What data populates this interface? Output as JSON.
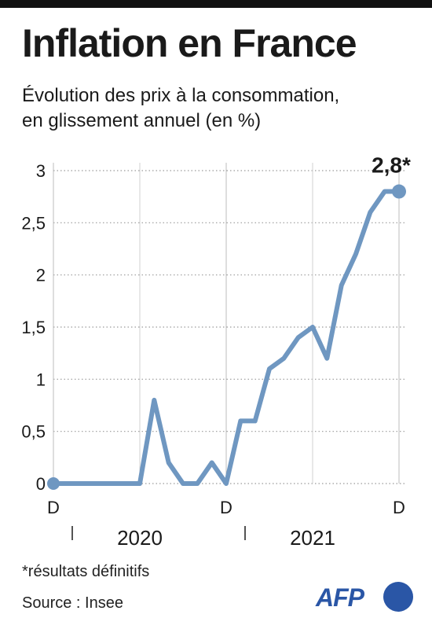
{
  "header": {
    "title": "Inflation en France",
    "subtitle_line1": "Évolution des prix à la consommation,",
    "subtitle_line2": "en glissement annuel (en %)"
  },
  "footer": {
    "footnote": "*résultats définitifs",
    "source": "Source : Insee",
    "logo": "AFP"
  },
  "colors": {
    "line": "#6f97c1",
    "grid": "#9a9a9a",
    "text": "#1a1a1a",
    "brand": "#2a56a6"
  },
  "chart_data": {
    "type": "line",
    "title": "Inflation en France",
    "subtitle": "Évolution des prix à la consommation, en glissement annuel (en %)",
    "xlabel": "",
    "ylabel": "",
    "ylim": [
      0,
      3
    ],
    "yticks": [
      0,
      0.5,
      1,
      1.5,
      2,
      2.5,
      3
    ],
    "ytick_labels": [
      "0",
      "0,5",
      "1",
      "1,5",
      "2",
      "2,5",
      "3"
    ],
    "x_tick_labels": [
      "D",
      "D",
      "D"
    ],
    "x_tick_positions": [
      "2019-12",
      "2020-12",
      "2021-12"
    ],
    "year_labels": [
      "2020",
      "2021"
    ],
    "grid": "horizontal dotted",
    "x": [
      "2019-12",
      "2020-01",
      "2020-02",
      "2020-03",
      "2020-04",
      "2020-05",
      "2020-06",
      "2020-07",
      "2020-08",
      "2020-09",
      "2020-10",
      "2020-11",
      "2020-12",
      "2021-01",
      "2021-02",
      "2021-03",
      "2021-04",
      "2021-05",
      "2021-06",
      "2021-07",
      "2021-08",
      "2021-09",
      "2021-10",
      "2021-11",
      "2021-12"
    ],
    "series": [
      {
        "values": [
          0,
          0,
          0,
          0,
          0,
          0,
          0,
          0.8,
          0.2,
          0,
          0,
          0.2,
          0,
          0.6,
          0.6,
          1.1,
          1.2,
          1.4,
          1.5,
          1.2,
          1.9,
          2.2,
          2.6,
          2.8,
          2.8
        ]
      }
    ],
    "annotation": "2,8*"
  }
}
